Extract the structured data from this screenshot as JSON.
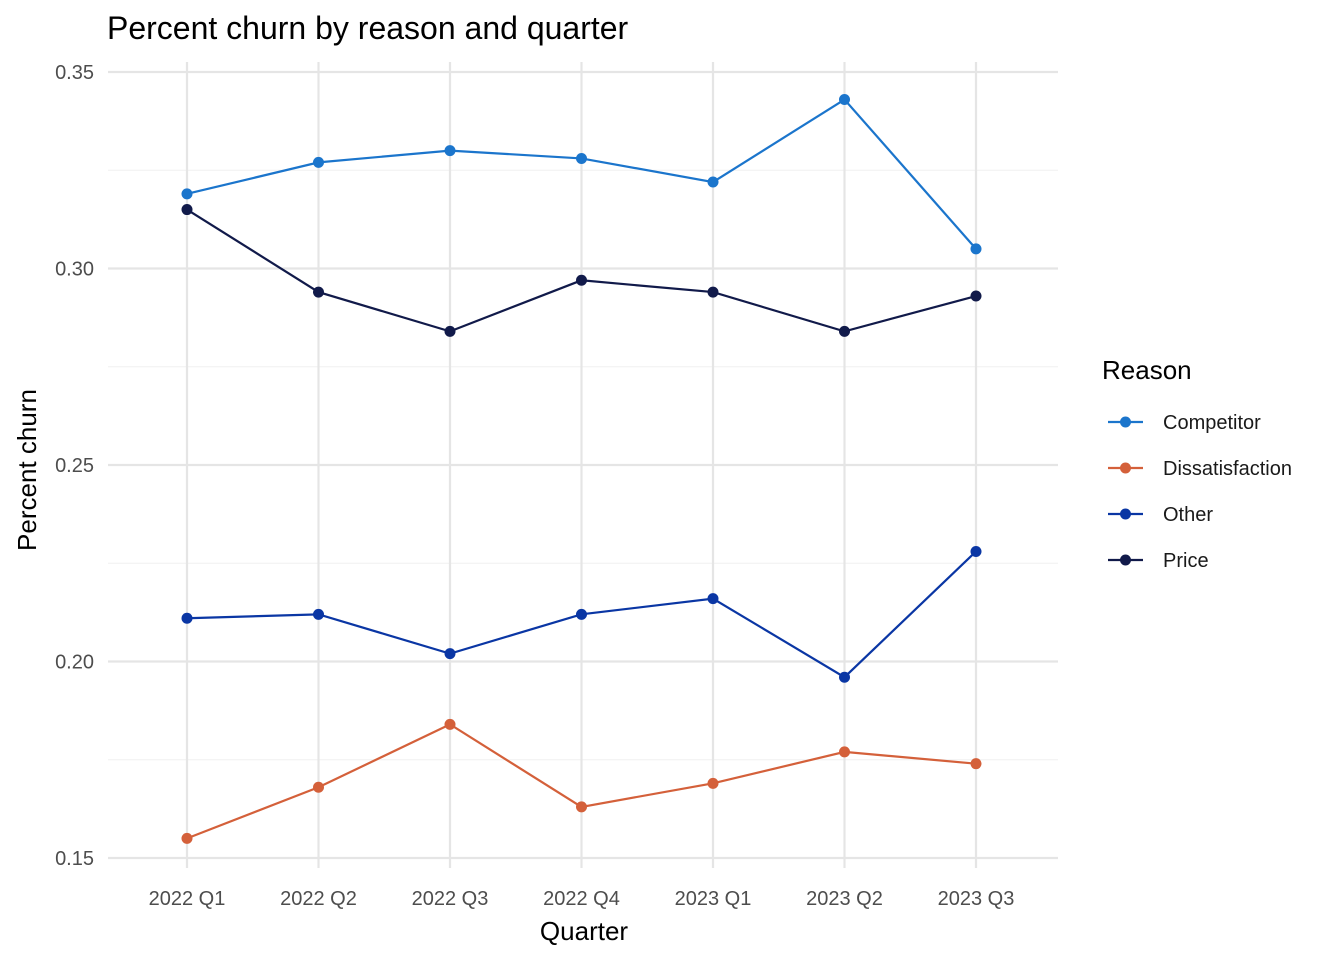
{
  "chart_data": {
    "type": "line",
    "title": "Percent churn by reason and quarter",
    "xlabel": "Quarter",
    "ylabel": "Percent churn",
    "categories": [
      "2022 Q1",
      "2022 Q2",
      "2022 Q3",
      "2022 Q4",
      "2023 Q1",
      "2023 Q2",
      "2023 Q3"
    ],
    "ylim": [
      0.145,
      0.35
    ],
    "yticks": [
      0.15,
      0.2,
      0.25,
      0.3,
      0.35
    ],
    "ytick_labels": [
      "0.15",
      "0.20",
      "0.25",
      "0.30",
      "0.35"
    ],
    "grid": true,
    "legend": {
      "title": "Reason",
      "position": "right"
    },
    "series": [
      {
        "name": "Competitor",
        "color": "#1b75cc",
        "values": [
          0.319,
          0.327,
          0.33,
          0.328,
          0.322,
          0.343,
          0.305
        ]
      },
      {
        "name": "Dissatisfaction",
        "color": "#d4603a",
        "values": [
          0.155,
          0.168,
          0.184,
          0.163,
          0.169,
          0.177,
          0.174
        ]
      },
      {
        "name": "Other",
        "color": "#0a36a4",
        "values": [
          0.211,
          0.212,
          0.202,
          0.212,
          0.216,
          0.196,
          0.228
        ]
      },
      {
        "name": "Price",
        "color": "#111a4a",
        "values": [
          0.315,
          0.294,
          0.284,
          0.297,
          0.294,
          0.284,
          0.293
        ]
      }
    ]
  }
}
